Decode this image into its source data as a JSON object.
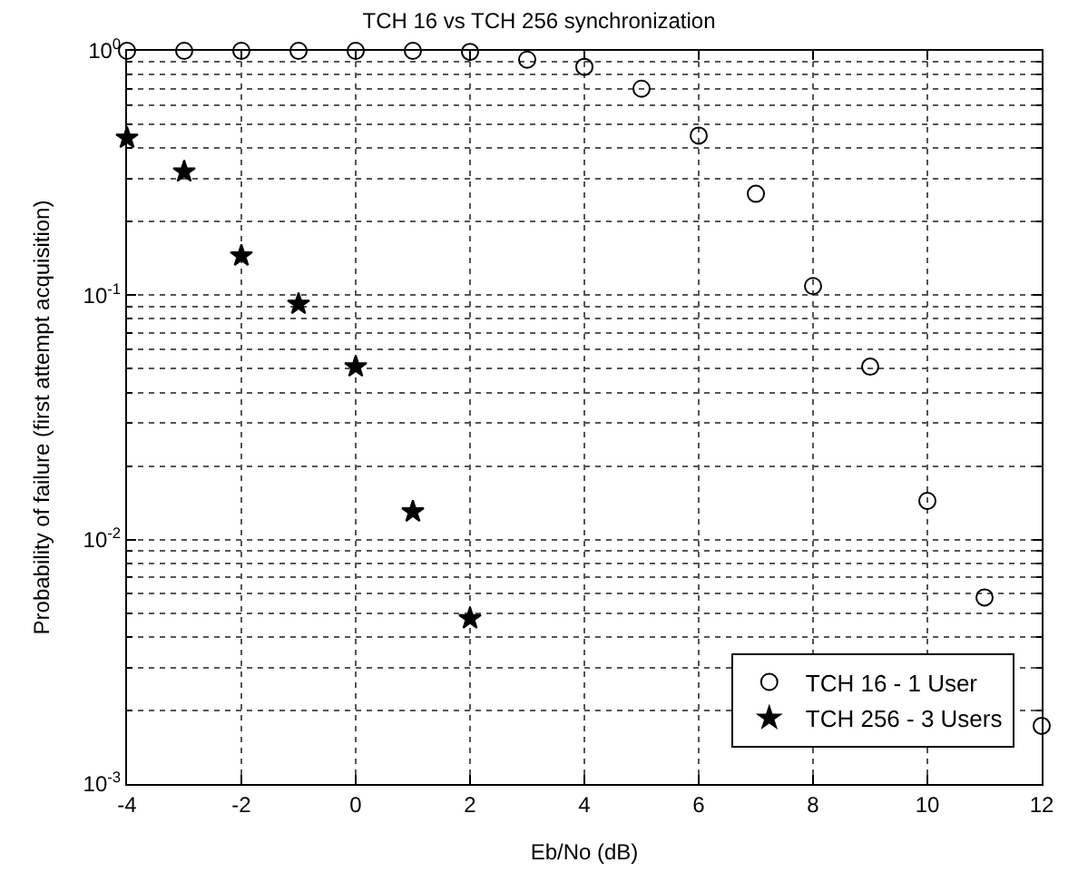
{
  "chart_data": {
    "type": "scatter",
    "title": "TCH 16 vs TCH 256 synchronization",
    "xlabel": "Eb/No (dB)",
    "ylabel": "Probability of failure (first attempt acquisition)",
    "log": "y",
    "grid": true,
    "legend": "bottom right",
    "xlim": [
      -4,
      12
    ],
    "xticks": [
      -4,
      -2,
      0,
      2,
      4,
      6,
      8,
      10,
      12
    ],
    "ylim": [
      0.001,
      1
    ],
    "yticks": [
      {
        "value": 1,
        "label": "10$^{0}$"
      },
      {
        "value": 0.1,
        "label": "10$^{-1}$"
      },
      {
        "value": 0.01,
        "label": "10$^{-2}$"
      },
      {
        "value": 0.001,
        "label": "10$^{-3}$"
      }
    ],
    "series": [
      {
        "name": "TCH 16 - 1 User",
        "color": "#000000",
        "marker": "circle",
        "x": [
          -4,
          -3,
          -2,
          -1,
          0,
          1,
          2,
          3,
          4,
          5,
          6,
          7,
          8,
          9,
          10,
          11,
          12
        ],
        "values": [
          1.0,
          1.0,
          1.0,
          1.0,
          1.0,
          1.0,
          0.99,
          0.92,
          0.86,
          0.7,
          0.45,
          0.26,
          0.109,
          0.051,
          0.0144,
          0.0058,
          0.00173
        ]
      },
      {
        "name": "TCH 256 - 3 Users",
        "color": "#000000",
        "marker": "star",
        "x": [
          -4,
          -3,
          -2,
          -1,
          0,
          1,
          2
        ],
        "values": [
          0.44,
          0.32,
          0.145,
          0.092,
          0.051,
          0.013,
          0.00475
        ]
      }
    ]
  }
}
